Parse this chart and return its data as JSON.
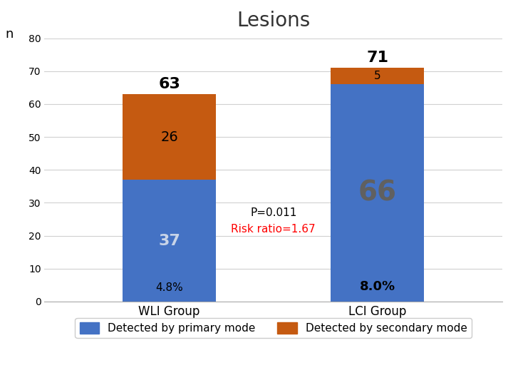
{
  "title": "Lesions",
  "ylabel": "n",
  "categories": [
    "WLI Group",
    "LCI Group"
  ],
  "primary_values": [
    37,
    66
  ],
  "secondary_values": [
    26,
    5
  ],
  "total_values": [
    63,
    71
  ],
  "percentages": [
    "4.8%",
    "8.0%"
  ],
  "primary_color": "#4472C4",
  "secondary_color": "#C55A11",
  "ylim": [
    0,
    80
  ],
  "yticks": [
    0,
    10,
    20,
    30,
    40,
    50,
    60,
    70,
    80
  ],
  "bar_width": 0.45,
  "p_value_text": "P=0.011",
  "risk_ratio_text": "Risk ratio=1.67",
  "legend_primary": "Detected by primary mode",
  "legend_secondary": "Detected by secondary mode",
  "background_color": "#ffffff",
  "grid_color": "#d0d0d0",
  "title_fontsize": 20,
  "tick_fontsize": 12
}
